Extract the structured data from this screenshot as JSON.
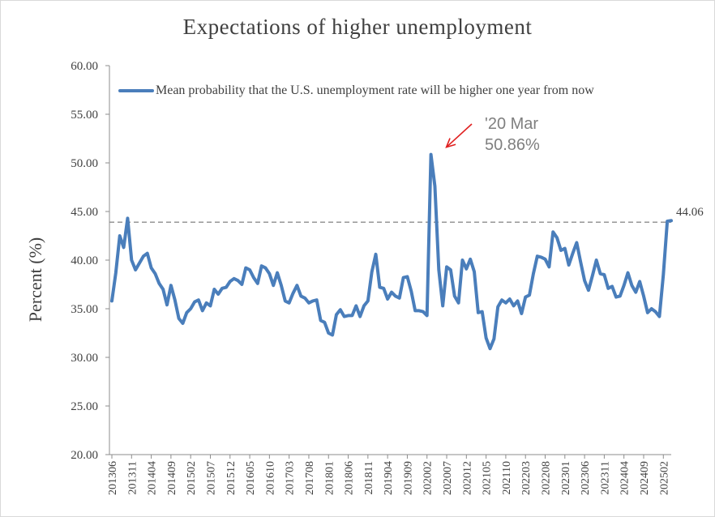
{
  "chart_data": {
    "type": "line",
    "title": "Expectations of higher unemployment",
    "ylabel": "Percent (%)",
    "xlabel": "",
    "ylim": [
      20,
      60
    ],
    "ytick_labels": [
      "20.00",
      "25.00",
      "30.00",
      "35.00",
      "40.00",
      "45.00",
      "50.00",
      "55.00",
      "60.00"
    ],
    "x_tick_labels": [
      "201306",
      "201311",
      "201404",
      "201409",
      "201502",
      "201507",
      "201512",
      "201605",
      "201610",
      "201703",
      "201708",
      "201801",
      "201806",
      "201811",
      "201904",
      "201909",
      "202002",
      "202007",
      "202012",
      "202105",
      "202110",
      "202203",
      "202208",
      "202301",
      "202306",
      "202311",
      "202404",
      "202409",
      "202502"
    ],
    "legend": {
      "position": "top",
      "entries": [
        "Mean probability that the U.S. unemployment rate will be higher one year from now"
      ]
    },
    "reference_line": {
      "value": 43.9,
      "style": "dashed"
    },
    "annotation": {
      "line1": "'20 Mar",
      "line2": "50.86%"
    },
    "last_value_label": "44.06",
    "series": [
      {
        "name": "Mean probability that the U.S. unemployment rate will be higher one year from now",
        "color": "#4a7ebb",
        "start": "2013-06",
        "values": [
          35.8,
          38.7,
          42.5,
          41.3,
          44.3,
          40.0,
          39.0,
          39.7,
          40.4,
          40.7,
          39.2,
          38.6,
          37.6,
          37.0,
          35.4,
          37.4,
          35.9,
          34.0,
          33.5,
          34.6,
          35.0,
          35.7,
          35.9,
          34.8,
          35.6,
          35.3,
          37.0,
          36.5,
          37.1,
          37.2,
          37.8,
          38.1,
          37.9,
          37.5,
          39.2,
          39.0,
          38.2,
          37.6,
          39.4,
          39.2,
          38.6,
          37.4,
          38.7,
          37.4,
          35.8,
          35.6,
          36.6,
          37.4,
          36.3,
          36.1,
          35.6,
          35.8,
          35.9,
          33.8,
          33.6,
          32.5,
          32.3,
          34.4,
          34.9,
          34.2,
          34.3,
          34.3,
          35.3,
          34.2,
          35.3,
          35.8,
          38.8,
          40.6,
          37.2,
          37.1,
          36.0,
          36.7,
          36.3,
          36.1,
          38.2,
          38.3,
          36.8,
          34.8,
          34.8,
          34.7,
          34.3,
          50.86,
          47.6,
          39.0,
          35.3,
          39.3,
          39.0,
          36.3,
          35.6,
          40.0,
          39.1,
          40.1,
          38.8,
          34.6,
          34.7,
          32.0,
          30.9,
          31.9,
          35.2,
          35.9,
          35.6,
          36.0,
          35.3,
          35.8,
          34.5,
          36.2,
          36.4,
          38.6,
          40.4,
          40.3,
          40.1,
          39.3,
          42.9,
          42.3,
          41.0,
          41.2,
          39.5,
          40.7,
          41.8,
          39.8,
          37.9,
          36.9,
          38.4,
          40.0,
          38.6,
          38.5,
          37.1,
          37.3,
          36.2,
          36.3,
          37.4,
          38.7,
          37.4,
          36.7,
          37.8,
          36.3,
          34.6,
          35.0,
          34.7,
          34.2,
          38.5,
          44.0,
          44.06
        ]
      }
    ]
  }
}
